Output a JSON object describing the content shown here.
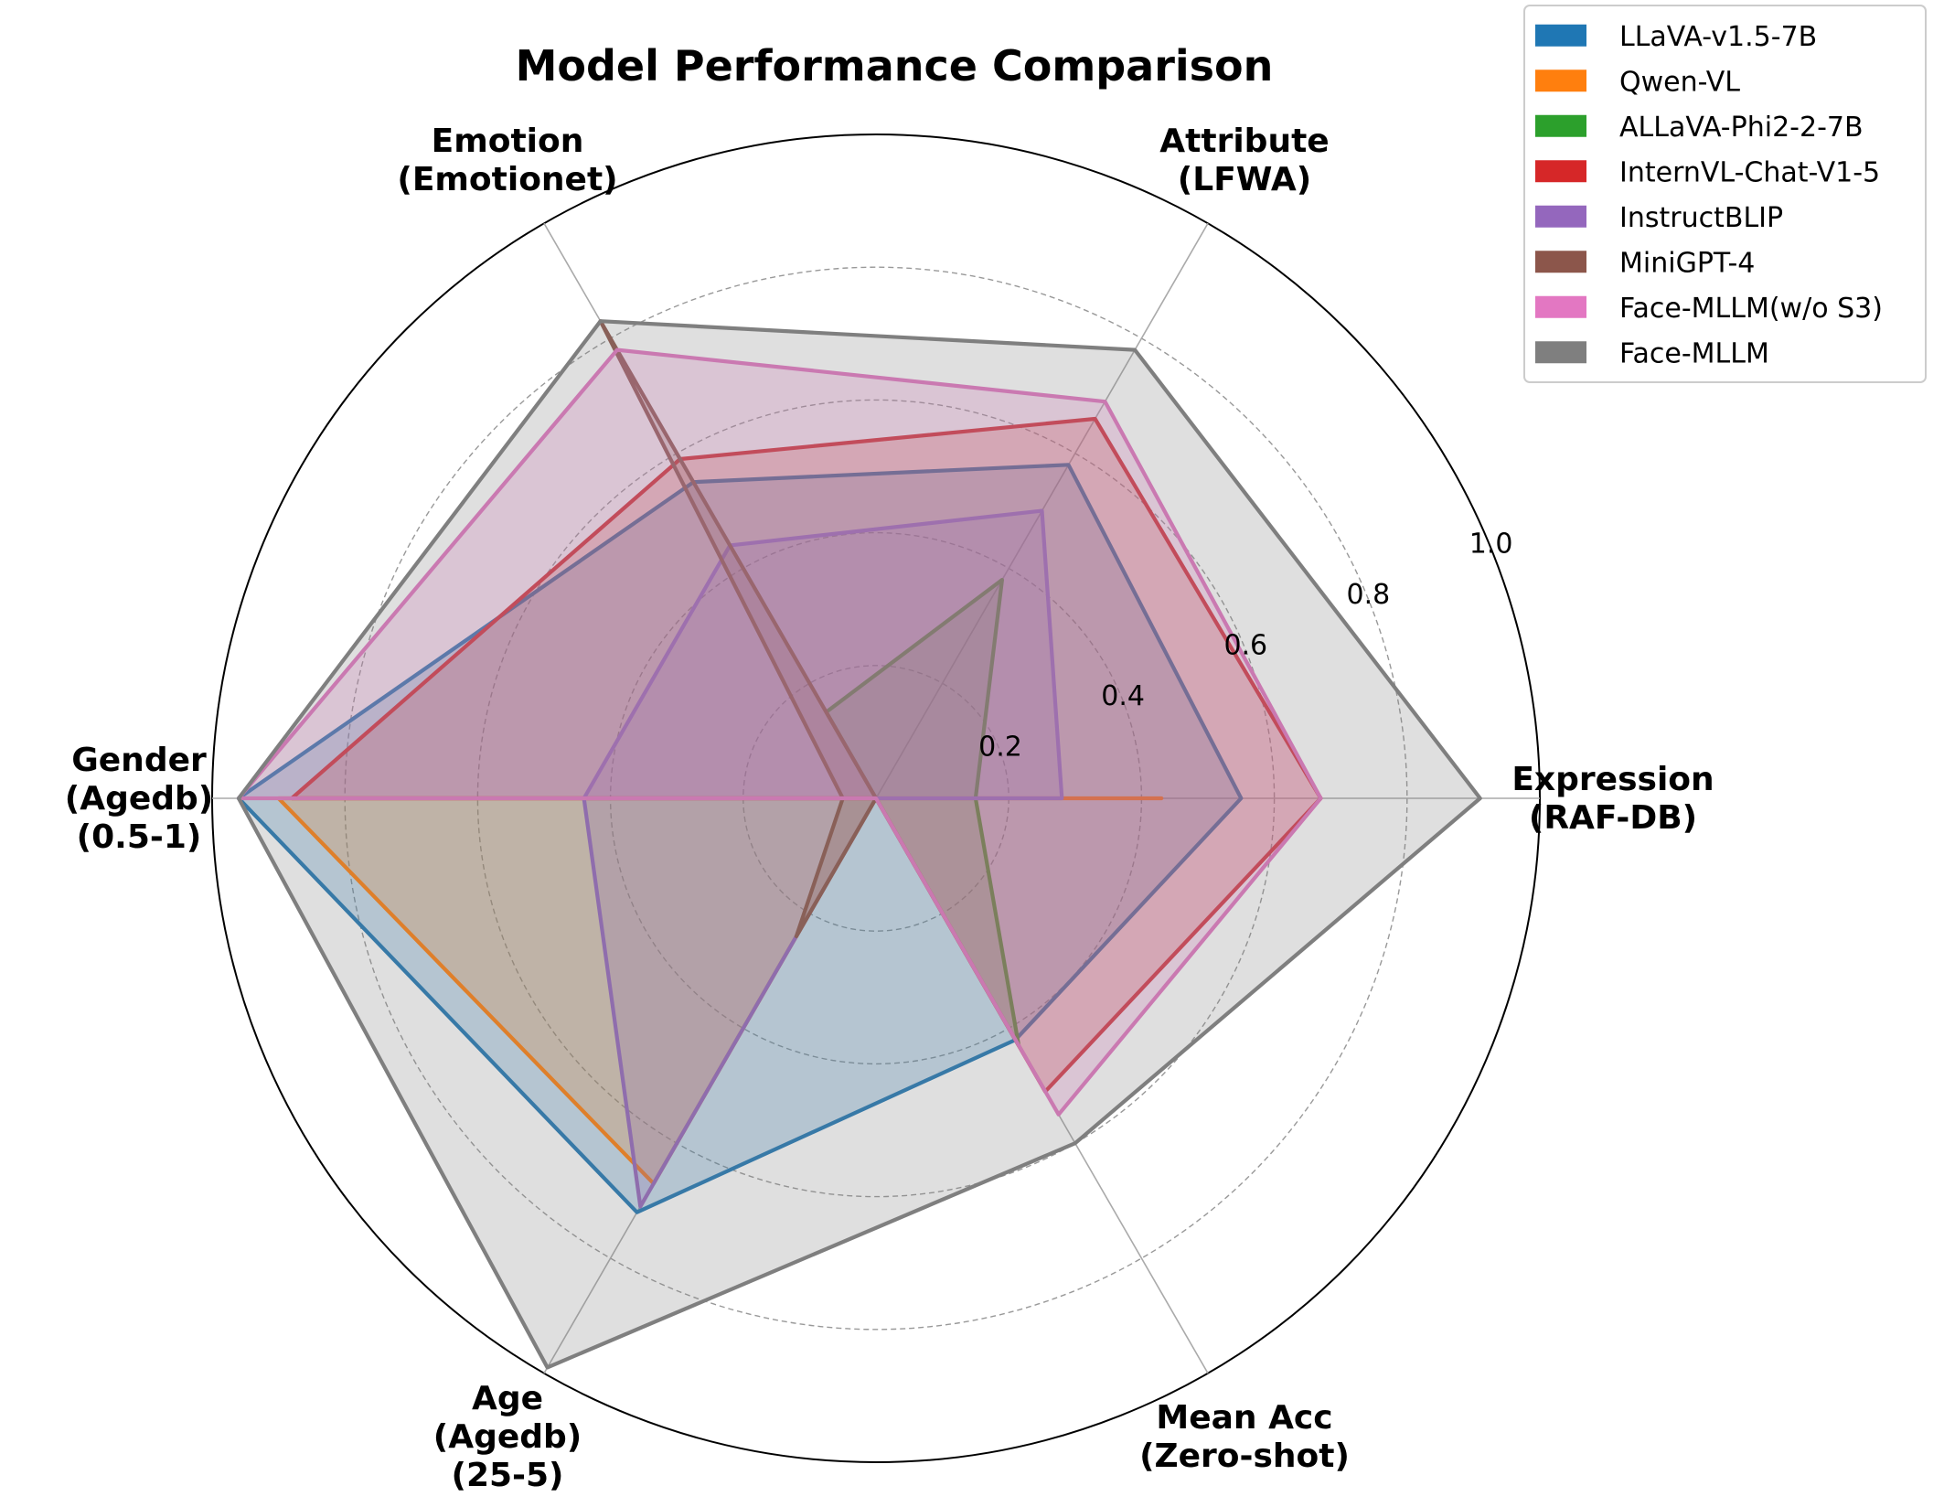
{
  "chart_data": {
    "type": "radar",
    "title": "Model Performance Comparison",
    "axes": [
      [
        "Expression",
        "(RAF-DB)"
      ],
      [
        "Attribute",
        "(LFWA)"
      ],
      [
        "Emotion",
        "(Emotionet)"
      ],
      [
        "Gender",
        "(Agedb)",
        "(0.5-1)"
      ],
      [
        "Age",
        "(Agedb)",
        "(25-5)"
      ],
      [
        "Mean Acc",
        "(Zero-shot)"
      ]
    ],
    "rlim": [
      0,
      1.0
    ],
    "ticks": [
      "0.2",
      "0.4",
      "0.6",
      "0.8",
      "1.0"
    ],
    "tick_values": [
      0.2,
      0.4,
      0.6,
      0.8,
      1.0
    ],
    "series": [
      {
        "name": "LLaVA-v1.5-7B",
        "color": "#1f77b4",
        "values": [
          0.55,
          0.58,
          0.55,
          0.96,
          0.72,
          0.42
        ]
      },
      {
        "name": "Qwen-VL",
        "color": "#ff7f0e",
        "values": [
          0.43,
          0.0,
          0.0,
          0.9,
          0.67,
          0.0
        ]
      },
      {
        "name": "ALLaVA-Phi2-2-7B",
        "color": "#2ca02c",
        "values": [
          0.15,
          0.38,
          0.15,
          0.0,
          0.0,
          0.43
        ]
      },
      {
        "name": "InternVL-Chat-V1-5",
        "color": "#d62728",
        "values": [
          0.67,
          0.66,
          0.59,
          0.88,
          0.0,
          0.51
        ]
      },
      {
        "name": "InstructBLIP",
        "color": "#9467bd",
        "values": [
          0.28,
          0.5,
          0.44,
          0.44,
          0.71,
          0.0
        ]
      },
      {
        "name": "MiniGPT-4",
        "color": "#8c564b",
        "values": [
          0.0,
          0.0,
          0.83,
          0.05,
          0.24,
          0.0
        ]
      },
      {
        "name": "Face-MLLM(w/o S3)",
        "color": "#e377c2",
        "values": [
          0.67,
          0.69,
          0.78,
          0.96,
          0.0,
          0.55
        ]
      },
      {
        "name": "Face-MLLM",
        "color": "#7f7f7f",
        "values": [
          0.91,
          0.78,
          0.83,
          0.96,
          0.99,
          0.6
        ]
      }
    ],
    "legend_position": "top-right"
  }
}
